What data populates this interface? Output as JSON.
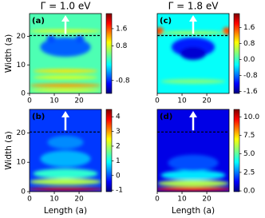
{
  "chart_data": [
    {
      "type": "heatmap",
      "title": "Γ = 1.0 eV",
      "panel_label": "(a)",
      "y_label": "Width (a)",
      "xlim": [
        0,
        29
      ],
      "ylim": [
        0,
        28
      ],
      "xticks": [
        0,
        10,
        20
      ],
      "yticks": [
        0,
        10,
        20
      ],
      "clim": [
        -1.4,
        2.3
      ],
      "cticks": [
        1.6,
        0.8,
        -0.8
      ],
      "colormap": "jet",
      "dashed_line_y": 20.3
    },
    {
      "type": "heatmap",
      "title": "Γ = 1.8 eV",
      "panel_label": "(c)",
      "xlim": [
        0,
        29
      ],
      "ylim": [
        0,
        28
      ],
      "xticks": [
        0,
        10,
        20
      ],
      "clim": [
        -1.7,
        2.3
      ],
      "cticks": [
        1.6,
        0.8,
        {
          "value": 0,
          "label": "0.0"
        },
        -0.8,
        -1.6
      ],
      "colormap": "jet",
      "dashed_line_y": 20.3
    },
    {
      "type": "heatmap",
      "panel_label": "(b)",
      "x_label": "Length (a)",
      "y_label": "Width (a)",
      "xlim": [
        0,
        29
      ],
      "ylim": [
        0,
        28
      ],
      "xticks": [
        0,
        10,
        20
      ],
      "yticks": [
        0,
        10,
        20
      ],
      "clim": [
        -1.1,
        4.5
      ],
      "cticks": [
        4,
        3,
        2,
        1,
        0,
        -1
      ],
      "colormap": "jet",
      "dashed_line_y": 20.3
    },
    {
      "type": "heatmap",
      "panel_label": "(d)",
      "x_label": "Length (a)",
      "xlim": [
        0,
        29
      ],
      "ylim": [
        0,
        28
      ],
      "xticks": [
        0,
        10,
        20
      ],
      "clim": [
        -0.1,
        11
      ],
      "cticks": [
        {
          "value": 10,
          "label": "10.0"
        },
        7.5,
        {
          "value": 5,
          "label": "5.0"
        },
        2.5,
        {
          "value": 0,
          "label": "0.0"
        }
      ],
      "colormap": "jet",
      "dashed_line_y": 20.3
    }
  ]
}
